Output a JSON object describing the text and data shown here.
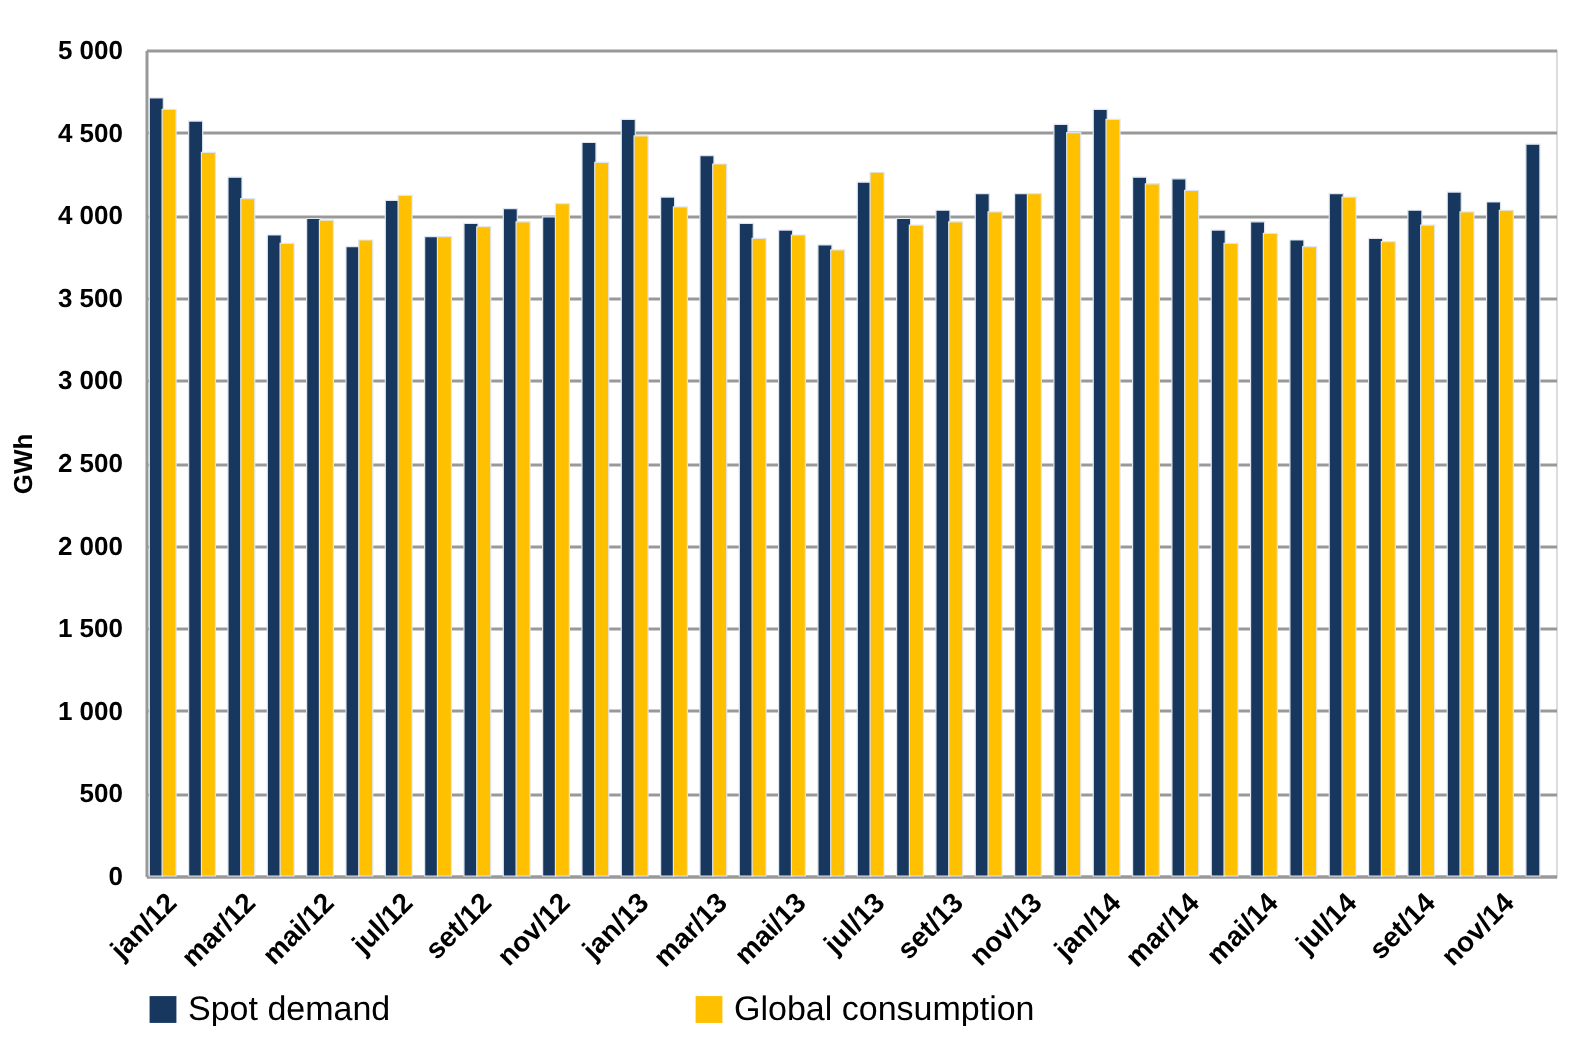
{
  "chart_data": {
    "type": "bar",
    "ylabel": "GWh",
    "categories": [
      "jan/12",
      null,
      "mar/12",
      null,
      "mai/12",
      null,
      "jul/12",
      null,
      "set/12",
      null,
      "nov/12",
      null,
      "jan/13",
      null,
      "mar/13",
      null,
      "mai/13",
      null,
      "jul/13",
      null,
      "set/13",
      null,
      "nov/13",
      null,
      "jan/14",
      null,
      "mar/14",
      null,
      "mai/14",
      null,
      "jul/14",
      null,
      "set/14",
      null,
      "nov/14",
      null
    ],
    "series": [
      {
        "name": "Spot demand",
        "color": "#17375e",
        "values": [
          4710,
          4570,
          4230,
          3880,
          3980,
          3810,
          4090,
          3870,
          3950,
          4040,
          3990,
          4440,
          4580,
          4110,
          4360,
          3950,
          3910,
          3820,
          4200,
          3980,
          4030,
          4130,
          4130,
          4550,
          4640,
          4230,
          4220,
          3910,
          3960,
          3850,
          4130,
          3860,
          4030,
          4140,
          4080,
          4430
        ]
      },
      {
        "name": "Global consumption",
        "color": "#ffc000",
        "values": [
          4640,
          4380,
          4100,
          3830,
          3970,
          3850,
          4120,
          3870,
          3930,
          3960,
          4070,
          4320,
          4480,
          4050,
          4310,
          3860,
          3880,
          3790,
          4260,
          3940,
          3960,
          4020,
          4130,
          4500,
          4580,
          4190,
          4150,
          3830,
          3890,
          3810,
          4110,
          3840,
          3940,
          4020,
          4030,
          null
        ]
      }
    ],
    "ylim": [
      0,
      5000
    ],
    "yticks": [
      0,
      500,
      {
        "value": 1000,
        "label": "1 000"
      },
      {
        "value": 1500,
        "label": "1 500"
      },
      {
        "value": 2000,
        "label": "2 000"
      },
      {
        "value": 2500,
        "label": "2 500"
      },
      {
        "value": 3000,
        "label": "3 000"
      },
      {
        "value": 3500,
        "label": "3 500"
      },
      {
        "value": 4000,
        "label": "4 000"
      },
      {
        "value": 4500,
        "label": "4 500"
      },
      {
        "value": 5000,
        "label": "5 000"
      }
    ],
    "grid": "y",
    "legend": "bottom"
  }
}
